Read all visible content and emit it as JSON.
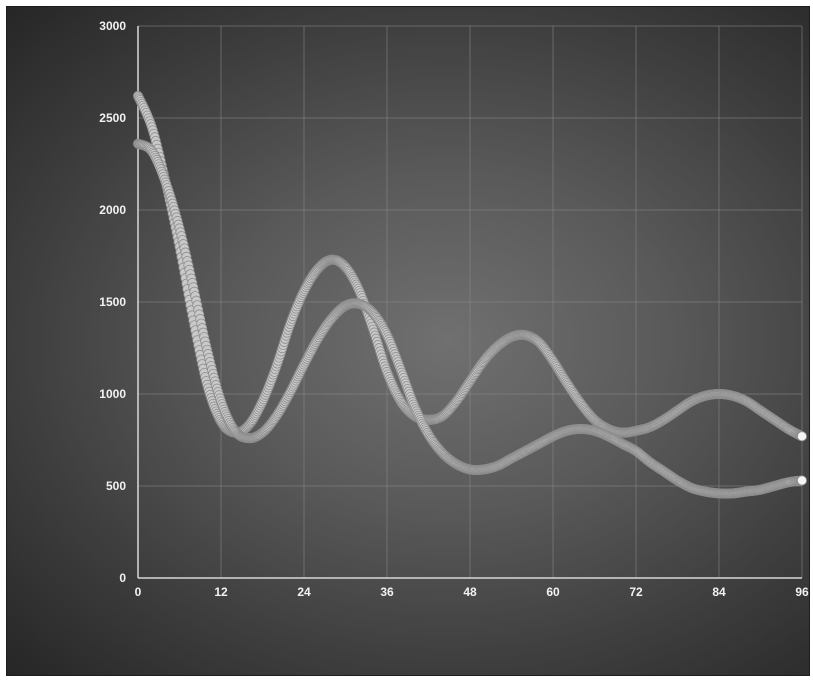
{
  "chart_data": {
    "type": "scatter",
    "title": "",
    "xlabel": "",
    "ylabel": "",
    "xlim": [
      0,
      96
    ],
    "ylim": [
      0,
      3000
    ],
    "x_ticks": [
      "0",
      "12",
      "24",
      "36",
      "48",
      "60",
      "72",
      "84",
      "96"
    ],
    "y_ticks": [
      "0",
      "500",
      "1000",
      "1500",
      "2000",
      "2500",
      "3000"
    ],
    "grid": true,
    "legend": "none",
    "marker_color": "#c9c9c9",
    "series": [
      {
        "x": [
          0,
          2,
          4,
          6,
          8,
          10,
          12,
          14,
          16,
          18,
          20,
          22,
          24,
          26,
          28,
          30,
          32,
          34,
          36,
          38,
          40,
          42,
          44,
          46,
          48,
          50,
          52,
          54,
          56,
          58,
          60,
          62,
          64,
          66,
          68,
          70,
          72,
          74,
          76,
          78,
          80,
          82,
          84,
          86,
          88,
          90,
          92,
          94,
          96
        ],
        "y": [
          2620,
          2450,
          2150,
          1800,
          1400,
          1050,
          850,
          790,
          830,
          960,
          1150,
          1380,
          1560,
          1680,
          1730,
          1690,
          1560,
          1350,
          1120,
          960,
          880,
          860,
          880,
          960,
          1070,
          1180,
          1260,
          1310,
          1320,
          1280,
          1180,
          1060,
          950,
          860,
          810,
          790,
          800,
          820,
          860,
          910,
          960,
          990,
          1000,
          990,
          960,
          910,
          860,
          810,
          770
        ]
      },
      {
        "x": [
          0,
          2,
          4,
          6,
          8,
          10,
          12,
          14,
          16,
          18,
          20,
          22,
          24,
          26,
          28,
          30,
          32,
          34,
          36,
          38,
          40,
          42,
          44,
          46,
          48,
          50,
          52,
          54,
          56,
          58,
          60,
          62,
          64,
          66,
          68,
          70,
          72,
          74,
          76,
          78,
          80,
          82,
          84,
          86,
          88,
          90,
          92,
          94,
          96
        ],
        "y": [
          2360,
          2320,
          2150,
          1900,
          1580,
          1240,
          960,
          800,
          760,
          790,
          880,
          1010,
          1160,
          1300,
          1410,
          1480,
          1490,
          1440,
          1320,
          1130,
          930,
          780,
          680,
          620,
          590,
          590,
          610,
          650,
          690,
          730,
          770,
          800,
          810,
          800,
          770,
          730,
          690,
          630,
          580,
          530,
          490,
          470,
          460,
          460,
          470,
          480,
          500,
          520,
          530
        ]
      }
    ]
  }
}
